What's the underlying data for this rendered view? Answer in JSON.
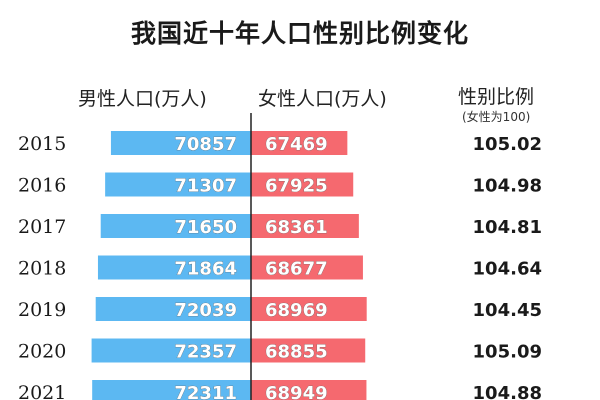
{
  "title": "我国近十年人口性别比例变化",
  "headers": {
    "male": "男性人口(万人)",
    "female": "女性人口(万人)",
    "ratio": "性别比例",
    "ratio_note": "(女性为100)"
  },
  "colors": {
    "male_bar": "#5cb8f2",
    "female_bar": "#f5696f",
    "divider": "#222222"
  },
  "chart_data": {
    "type": "bar",
    "orientation": "horizontal-diverging",
    "categories": [
      "2015",
      "2016",
      "2017",
      "2018",
      "2019",
      "2020",
      "2021"
    ],
    "series": [
      {
        "name": "男性人口(万人)",
        "values": [
          70857,
          71307,
          71650,
          71864,
          72039,
          72357,
          72311
        ]
      },
      {
        "name": "女性人口(万人)",
        "values": [
          67469,
          67925,
          68361,
          68677,
          68969,
          68855,
          68949
        ]
      }
    ],
    "ratio_labels": [
      "105.02",
      "104.98",
      "104.81",
      "104.64",
      "104.45",
      "105.09",
      "104.88"
    ],
    "ratio_values": [
      105.02,
      104.98,
      104.81,
      104.64,
      104.45,
      105.09,
      104.88
    ]
  }
}
